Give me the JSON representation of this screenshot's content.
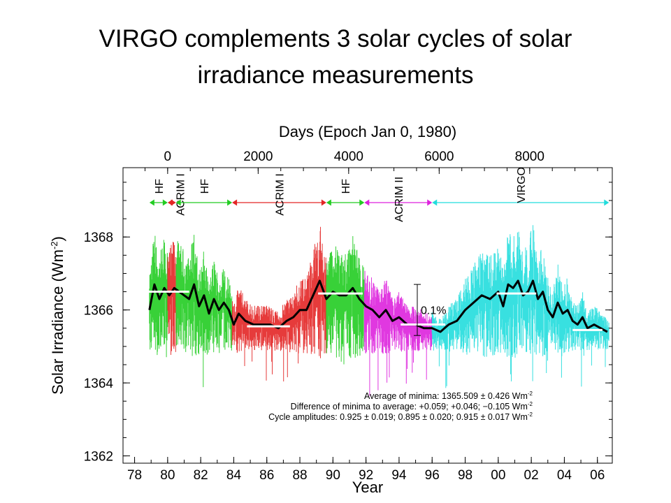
{
  "slide": {
    "title_line1": "VIRGO complements 3 solar cycles of solar",
    "title_line2": "irradiance measurements"
  },
  "chart_data": {
    "type": "line",
    "top_axis_label": "Days (Epoch Jan 0, 1980)",
    "top_ticks": [
      {
        "value": 0,
        "label": "0"
      },
      {
        "value": 2000,
        "label": "2000"
      },
      {
        "value": 4000,
        "label": "4000"
      },
      {
        "value": 6000,
        "label": "6000"
      },
      {
        "value": 8000,
        "label": "8000"
      }
    ],
    "xlabel": "Year",
    "x_ticks": [
      {
        "year": 1978,
        "label": "78"
      },
      {
        "year": 1980,
        "label": "80"
      },
      {
        "year": 1982,
        "label": "82"
      },
      {
        "year": 1984,
        "label": "84"
      },
      {
        "year": 1986,
        "label": "86"
      },
      {
        "year": 1988,
        "label": "88"
      },
      {
        "year": 1990,
        "label": "90"
      },
      {
        "year": 1992,
        "label": "92"
      },
      {
        "year": 1994,
        "label": "94"
      },
      {
        "year": 1996,
        "label": "96"
      },
      {
        "year": 1998,
        "label": "98"
      },
      {
        "year": 2000,
        "label": "00"
      },
      {
        "year": 2002,
        "label": "02"
      },
      {
        "year": 2004,
        "label": "04"
      },
      {
        "year": 2006,
        "label": "06"
      }
    ],
    "xlim": [
      1977.3,
      2006.9
    ],
    "ylabel": "Solar Irradiance (Wm",
    "ylabel_sup": "-2",
    "ylabel_close": ")",
    "y_ticks": [
      1362,
      1364,
      1366,
      1368
    ],
    "ylim": [
      1361.8,
      1369.9
    ],
    "instruments": [
      {
        "label": "HF",
        "start": 1978.9,
        "end": 1980.0,
        "color": "#22cc22"
      },
      {
        "label": "ACRIM I",
        "start": 1980.0,
        "end": 1980.5,
        "color": "#e32626"
      },
      {
        "label": "HF",
        "start": 1980.5,
        "end": 1983.9,
        "color": "#22cc22"
      },
      {
        "label": "ACRIM I",
        "start": 1983.9,
        "end": 1989.6,
        "color": "#e32626"
      },
      {
        "label": "HF",
        "start": 1989.6,
        "end": 1991.9,
        "color": "#22cc22"
      },
      {
        "label": "ACRIM II",
        "start": 1991.9,
        "end": 1996.0,
        "color": "#dd22dd"
      },
      {
        "label": "VIRGO",
        "start": 1996.0,
        "end": 2006.7,
        "color": "#22dddd"
      }
    ],
    "annotation_percent": "0.1%",
    "percent_bar_range": [
      1365.3,
      1366.7
    ],
    "series": [
      {
        "type": "daily-composite",
        "segments": [
          {
            "start": 1978.9,
            "end": 1980.0,
            "color": "#22cc22"
          },
          {
            "start": 1980.0,
            "end": 1980.5,
            "color": "#e32626"
          },
          {
            "start": 1980.5,
            "end": 1983.9,
            "color": "#22cc22"
          },
          {
            "start": 1983.9,
            "end": 1989.6,
            "color": "#e32626"
          },
          {
            "start": 1989.6,
            "end": 1991.9,
            "color": "#22cc22"
          },
          {
            "start": 1991.9,
            "end": 1996.0,
            "color": "#dd22dd"
          },
          {
            "start": 1996.0,
            "end": 2006.7,
            "color": "#22dddd"
          }
        ]
      },
      {
        "type": "smoothed",
        "color": "#000000",
        "x": [
          1978.9,
          1979.2,
          1979.5,
          1979.8,
          1980.1,
          1980.4,
          1980.7,
          1981.0,
          1981.3,
          1981.6,
          1981.9,
          1982.2,
          1982.5,
          1982.8,
          1983.1,
          1983.4,
          1983.7,
          1984.0,
          1984.3,
          1984.7,
          1985.2,
          1985.7,
          1986.2,
          1986.7,
          1987.2,
          1987.6,
          1988.0,
          1988.4,
          1988.8,
          1989.2,
          1989.6,
          1990.0,
          1990.4,
          1990.8,
          1991.2,
          1991.6,
          1992.0,
          1992.4,
          1992.8,
          1993.2,
          1993.6,
          1994.0,
          1994.5,
          1995.0,
          1995.5,
          1996.0,
          1996.5,
          1997.0,
          1997.5,
          1998.0,
          1998.5,
          1999.0,
          1999.5,
          2000.0,
          2000.3,
          2000.6,
          2000.9,
          2001.2,
          2001.5,
          2001.8,
          2002.1,
          2002.4,
          2002.7,
          2003.0,
          2003.3,
          2003.6,
          2003.9,
          2004.2,
          2004.5,
          2004.8,
          2005.1,
          2005.4,
          2005.8,
          2006.2,
          2006.6
        ],
        "y": [
          1366.0,
          1366.7,
          1366.3,
          1366.6,
          1366.4,
          1366.6,
          1366.5,
          1366.4,
          1366.3,
          1366.7,
          1366.1,
          1366.4,
          1365.9,
          1366.3,
          1366.0,
          1366.2,
          1366.0,
          1365.6,
          1365.9,
          1365.7,
          1365.6,
          1365.6,
          1365.6,
          1365.5,
          1365.7,
          1365.8,
          1366.0,
          1366.0,
          1366.4,
          1366.8,
          1366.3,
          1366.5,
          1366.4,
          1366.4,
          1366.6,
          1366.3,
          1366.1,
          1366.0,
          1365.8,
          1366.0,
          1365.7,
          1365.8,
          1365.6,
          1365.6,
          1365.5,
          1365.5,
          1365.4,
          1365.6,
          1365.7,
          1366.0,
          1366.2,
          1366.4,
          1366.3,
          1366.5,
          1366.1,
          1366.7,
          1366.6,
          1366.8,
          1366.4,
          1366.5,
          1366.8,
          1366.3,
          1366.5,
          1366.0,
          1365.8,
          1366.2,
          1365.9,
          1366.0,
          1365.7,
          1365.6,
          1365.8,
          1365.5,
          1365.6,
          1365.5,
          1365.4
        ]
      },
      {
        "type": "cycle-averages",
        "color": "#ffffff",
        "levels": [
          {
            "start": 1978.7,
            "end": 1981.3,
            "value": 1366.5
          },
          {
            "start": 1984.8,
            "end": 1987.4,
            "value": 1365.55
          },
          {
            "start": 1989.1,
            "end": 1991.8,
            "value": 1366.45
          },
          {
            "start": 1994.1,
            "end": 1996.8,
            "value": 1365.6
          },
          {
            "start": 1999.9,
            "end": 2002.3,
            "value": 1366.45
          },
          {
            "start": 2004.5,
            "end": 2006.3,
            "value": 1365.45
          }
        ]
      }
    ],
    "stats": [
      {
        "label": "Average of minima:  1365.509 ± 0.426 Wm",
        "sup": "-2"
      },
      {
        "label": "Difference of minima to average: +0.059; +0.046; −0.105 Wm",
        "sup": "-2"
      },
      {
        "label": "Cycle amplitudes:  0.925 ± 0.019; 0.895 ± 0.020; 0.915 ± 0.017 Wm",
        "sup": "-2"
      }
    ],
    "grid": false,
    "legend": "none"
  }
}
